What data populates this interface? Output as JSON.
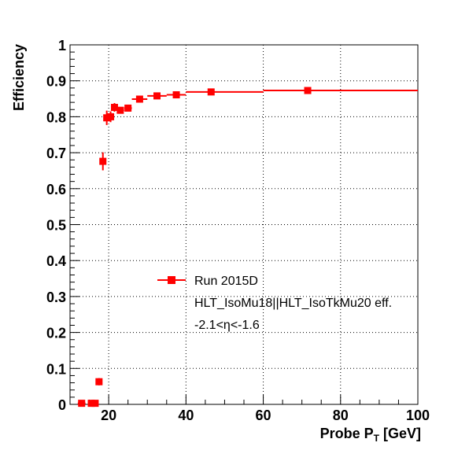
{
  "chart_data": {
    "type": "scatter",
    "xlabel": "Probe P",
    "xlabel_sub": "T",
    "xlabel_unit": "[GeV]",
    "ylabel": "Efficiency",
    "xlim": [
      10,
      100
    ],
    "ylim": [
      0,
      1
    ],
    "x_ticks": [
      "20",
      "40",
      "60",
      "80",
      "100"
    ],
    "y_ticks": [
      "0",
      "0.1",
      "0.2",
      "0.3",
      "0.4",
      "0.5",
      "0.6",
      "0.7",
      "0.8",
      "0.9",
      "1"
    ],
    "grid": true,
    "legend_position": "center",
    "color": "#ff0000",
    "series": [
      {
        "name": "Run 2015D",
        "points": [
          {
            "x": 13,
            "y": 0.003,
            "xlo": 12,
            "xhi": 14,
            "elo": 0.003,
            "ehi": 0.003
          },
          {
            "x": 15.5,
            "y": 0.003,
            "xlo": 15,
            "xhi": 16,
            "elo": 0.003,
            "ehi": 0.003
          },
          {
            "x": 16.5,
            "y": 0.003,
            "xlo": 16,
            "xhi": 17,
            "elo": 0.003,
            "ehi": 0.003
          },
          {
            "x": 17.5,
            "y": 0.063,
            "xlo": 17,
            "xhi": 18,
            "elo": 0.01,
            "ehi": 0.01
          },
          {
            "x": 18.5,
            "y": 0.676,
            "xlo": 18,
            "xhi": 19,
            "elo": 0.025,
            "ehi": 0.025
          },
          {
            "x": 19.5,
            "y": 0.797,
            "xlo": 19,
            "xhi": 20,
            "elo": 0.02,
            "ehi": 0.02
          },
          {
            "x": 20.5,
            "y": 0.8,
            "xlo": 20,
            "xhi": 21,
            "elo": 0.015,
            "ehi": 0.015
          },
          {
            "x": 21.5,
            "y": 0.826,
            "xlo": 21,
            "xhi": 22,
            "elo": 0.012,
            "ehi": 0.012
          },
          {
            "x": 23,
            "y": 0.818,
            "xlo": 22,
            "xhi": 24,
            "elo": 0.008,
            "ehi": 0.008
          },
          {
            "x": 25,
            "y": 0.824,
            "xlo": 24,
            "xhi": 26,
            "elo": 0.006,
            "ehi": 0.006
          },
          {
            "x": 28,
            "y": 0.849,
            "xlo": 26,
            "xhi": 30,
            "elo": 0.005,
            "ehi": 0.005
          },
          {
            "x": 32.5,
            "y": 0.858,
            "xlo": 30,
            "xhi": 35,
            "elo": 0.004,
            "ehi": 0.004
          },
          {
            "x": 37.5,
            "y": 0.861,
            "xlo": 35,
            "xhi": 40,
            "elo": 0.004,
            "ehi": 0.004
          },
          {
            "x": 46.5,
            "y": 0.869,
            "xlo": 40,
            "xhi": 60,
            "elo": 0.003,
            "ehi": 0.003
          },
          {
            "x": 71.5,
            "y": 0.873,
            "xlo": 60,
            "xhi": 100,
            "elo": 0.004,
            "ehi": 0.004
          }
        ]
      }
    ],
    "annotations": [
      "HLT_IsoMu18||HLT_IsoTkMu20 eff.",
      "-2.1<η<-1.6"
    ]
  }
}
